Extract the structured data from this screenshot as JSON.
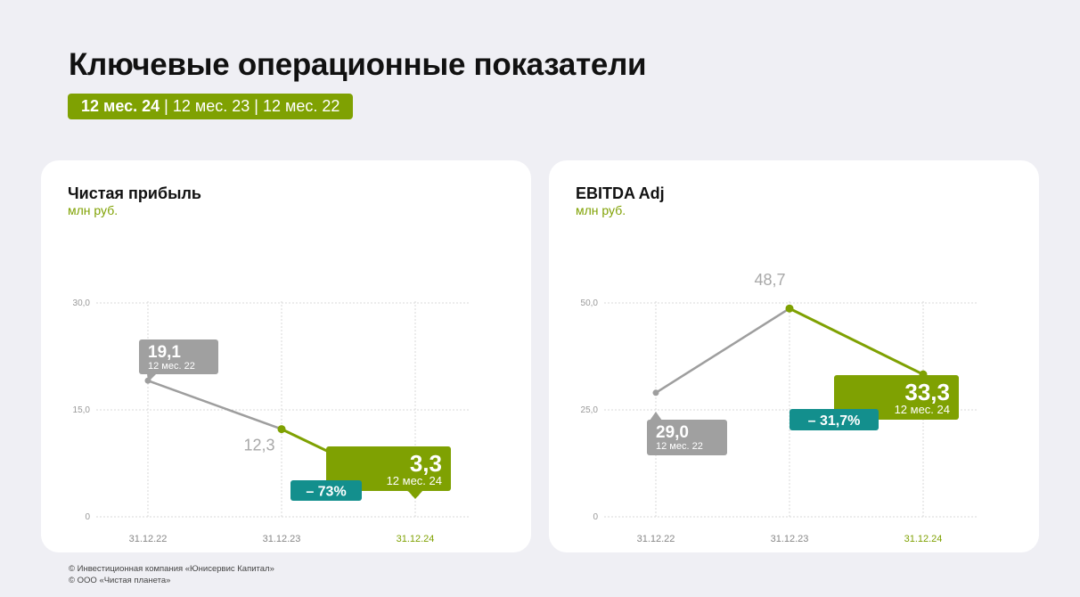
{
  "page": {
    "title": "Ключевые операционные показатели",
    "period_active": "12 мес. 24",
    "period_rest": " | 12 мес. 23 | 12 мес. 22"
  },
  "footer": {
    "line1": "© Инвестиционная компания «Юнисервис Капитал»",
    "line2": "© ООО «Чистая планета»"
  },
  "colors": {
    "accent": "#7fa102",
    "teal": "#138f8d",
    "grey": "#a0a0a0",
    "grey_line": "#9e9e9e"
  },
  "chart_data": [
    {
      "type": "line",
      "title": "Чистая прибыль",
      "ylabel": "млн руб.",
      "categories": [
        "31.12.22",
        "31.12.23",
        "31.12.24"
      ],
      "values": [
        19.1,
        12.3,
        3.3
      ],
      "value_labels": [
        "19,1",
        "12,3",
        "3,3"
      ],
      "ylim": [
        0,
        30
      ],
      "yticks": [
        0,
        15,
        30
      ],
      "ytick_labels": [
        "0",
        "15,0",
        "30,0"
      ],
      "grid": true,
      "callouts": [
        {
          "index": 0,
          "value": "19,1",
          "period": "12 мес. 22",
          "style": "grey"
        },
        {
          "index": 2,
          "value": "3,3",
          "period": "12 мес. 24",
          "style": "accent"
        }
      ],
      "change_badge": "– 73%"
    },
    {
      "type": "line",
      "title": "EBITDA Adj",
      "ylabel": "млн руб.",
      "categories": [
        "31.12.22",
        "31.12.23",
        "31.12.24"
      ],
      "values": [
        29.0,
        48.7,
        33.3
      ],
      "value_labels": [
        "29,0",
        "48,7",
        "33,3"
      ],
      "ylim": [
        0,
        50
      ],
      "yticks": [
        0,
        25,
        50
      ],
      "ytick_labels": [
        "0",
        "25,0",
        "50,0"
      ],
      "grid": true,
      "callouts": [
        {
          "index": 0,
          "value": "29,0",
          "period": "12 мес. 22",
          "style": "grey"
        },
        {
          "index": 2,
          "value": "33,3",
          "period": "12 мес. 24",
          "style": "accent"
        }
      ],
      "change_badge": "– 31,7%"
    }
  ]
}
